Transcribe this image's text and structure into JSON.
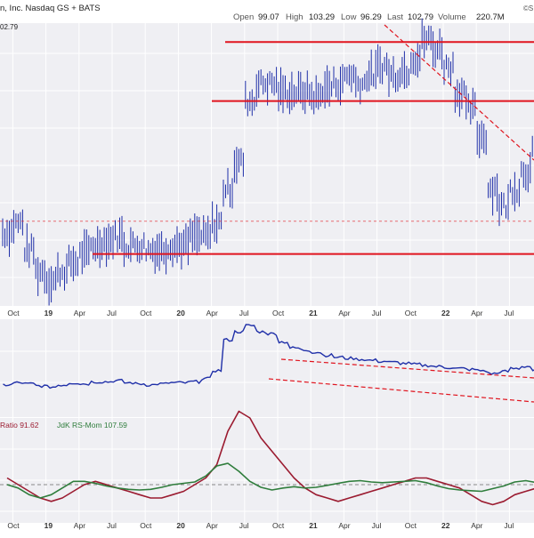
{
  "header": {
    "title": "n, Inc. Nasdaq GS + BATS",
    "open_label": "Open",
    "open": "99.07",
    "high_label": "High",
    "high": "103.29",
    "low_label": "Low",
    "low": "96.29",
    "last_label": "Last",
    "last": "102.79",
    "volume_label": "Volume",
    "volume": "220.7M",
    "corner_text": "©S",
    "price_tag": "02.79"
  },
  "panels": {
    "rrg_label_ratio": "Ratio 91.62",
    "rrg_label_mom": "JdK RS-Mom 107.59"
  },
  "colors": {
    "price": "#1f2fa8",
    "ratio": "#1f2fa8",
    "rs_ratio": "#9b1b30",
    "rs_mom": "#2f7d3c",
    "support_resistance": "#e0141e",
    "trend_dashed": "#e0141e",
    "panel_bg": "#efeff3",
    "grid": "#ffffff"
  },
  "chart_data": [
    {
      "type": "line",
      "panel": "price",
      "title": "n, Inc. Nasdaq GS + BATS",
      "x_ticks": [
        "Oct",
        "19",
        "Apr",
        "Jul",
        "Oct",
        "20",
        "Apr",
        "Jul",
        "Oct",
        "21",
        "Apr",
        "Jul",
        "Oct",
        "22",
        "Apr",
        "Jul",
        "Oct"
      ],
      "horizontal_lines": [
        93.5,
        80,
        45
      ],
      "dashed_level": 52.5,
      "series": [
        {
          "name": "",
          "x": [
            "2018-09",
            "2018-10",
            "2018-11",
            "2018-12",
            "2019-01",
            "2019-02",
            "2019-03",
            "2019-04",
            "2019-05",
            "2019-06",
            "2019-07",
            "2019-08",
            "2019-09",
            "2019-10",
            "2019-11",
            "2019-12",
            "2020-01",
            "2020-02",
            "2020-03",
            "2020-04",
            "2020-05",
            "2020-06",
            "2020-07",
            "2020-08",
            "2020-09",
            "2020-10",
            "2020-11",
            "2020-12",
            "2021-01",
            "2021-02",
            "2021-03",
            "2021-04",
            "2021-05",
            "2021-06",
            "2021-07",
            "2021-08",
            "2021-09",
            "2021-10",
            "2021-11",
            "2021-12",
            "2022-01",
            "2022-02",
            "2022-03",
            "2022-04",
            "2022-05",
            "2022-06",
            "2022-07",
            "2022-08",
            "2022-09",
            "2022-10",
            "2022-11"
          ],
          "values": [
            50,
            52,
            46,
            41,
            39,
            41,
            43,
            45,
            47,
            48,
            49,
            47,
            47,
            46,
            46,
            47,
            47,
            49,
            49,
            52,
            60,
            66,
            80,
            84,
            84,
            82,
            82,
            82,
            81,
            83,
            84,
            86,
            84,
            86,
            88,
            86,
            87,
            90,
            94,
            92,
            88,
            82,
            78,
            72,
            60,
            56,
            60,
            64,
            68,
            60,
            50
          ]
        }
      ]
    },
    {
      "type": "line",
      "panel": "relative-strength",
      "series": [
        {
          "name": "",
          "x": [
            "2018-09",
            "2018-10",
            "2018-11",
            "2018-12",
            "2019-01",
            "2019-02",
            "2019-03",
            "2019-04",
            "2019-05",
            "2019-06",
            "2019-07",
            "2019-08",
            "2019-09",
            "2019-10",
            "2019-11",
            "2019-12",
            "2020-01",
            "2020-02",
            "2020-03",
            "2020-04",
            "2020-05",
            "2020-06",
            "2020-07",
            "2020-08",
            "2020-09",
            "2020-10",
            "2020-11",
            "2020-12",
            "2021-01",
            "2021-02",
            "2021-03",
            "2021-04",
            "2021-05",
            "2021-06",
            "2021-07",
            "2021-08",
            "2021-09",
            "2021-10",
            "2021-11",
            "2021-12",
            "2022-01",
            "2022-02",
            "2022-03",
            "2022-04",
            "2022-05",
            "2022-06",
            "2022-07",
            "2022-08",
            "2022-09",
            "2022-10",
            "2022-11"
          ],
          "values": [
            28,
            30,
            29,
            27,
            26,
            28,
            30,
            29,
            31,
            31,
            32,
            30,
            29,
            28,
            29,
            30,
            30,
            31,
            34,
            42,
            72,
            80,
            86,
            80,
            78,
            70,
            64,
            62,
            60,
            57,
            55,
            54,
            53,
            52,
            51,
            50,
            49,
            48,
            47,
            46,
            45,
            44,
            43,
            42,
            39,
            41,
            44,
            46,
            42,
            34,
            30
          ]
        }
      ]
    },
    {
      "type": "line",
      "panel": "rrg",
      "series": [
        {
          "name": "Ratio",
          "x": [
            "2018-09",
            "2018-10",
            "2018-11",
            "2018-12",
            "2019-01",
            "2019-02",
            "2019-03",
            "2019-04",
            "2019-05",
            "2019-06",
            "2019-07",
            "2019-08",
            "2019-09",
            "2019-10",
            "2019-11",
            "2019-12",
            "2020-01",
            "2020-02",
            "2020-03",
            "2020-04",
            "2020-05",
            "2020-06",
            "2020-07",
            "2020-08",
            "2020-09",
            "2020-10",
            "2020-11",
            "2020-12",
            "2021-01",
            "2021-02",
            "2021-03",
            "2021-04",
            "2021-05",
            "2021-06",
            "2021-07",
            "2021-08",
            "2021-09",
            "2021-10",
            "2021-11",
            "2021-12",
            "2022-01",
            "2022-02",
            "2022-03",
            "2022-04",
            "2022-05",
            "2022-06",
            "2022-07",
            "2022-08",
            "2022-09",
            "2022-10",
            "2022-11"
          ],
          "values": [
            101,
            100,
            99,
            98,
            97.5,
            98,
            99,
            100,
            100.5,
            100,
            99.5,
            99,
            98.5,
            98,
            98,
            98.5,
            99,
            100,
            101,
            103,
            108,
            111,
            110,
            107,
            105,
            103,
            101,
            99.5,
            98.5,
            98,
            97.5,
            98,
            98.5,
            99,
            99.5,
            100,
            100.5,
            101,
            101,
            100.5,
            100,
            99.5,
            98.5,
            97.5,
            97,
            97.5,
            98.5,
            99,
            99.5,
            99,
            98
          ]
        },
        {
          "name": "JdK RS-Mom",
          "x": [
            "2018-09",
            "2018-10",
            "2018-11",
            "2018-12",
            "2019-01",
            "2019-02",
            "2019-03",
            "2019-04",
            "2019-05",
            "2019-06",
            "2019-07",
            "2019-08",
            "2019-09",
            "2019-10",
            "2019-11",
            "2019-12",
            "2020-01",
            "2020-02",
            "2020-03",
            "2020-04",
            "2020-05",
            "2020-06",
            "2020-07",
            "2020-08",
            "2020-09",
            "2020-10",
            "2020-11",
            "2020-12",
            "2021-01",
            "2021-02",
            "2021-03",
            "2021-04",
            "2021-05",
            "2021-06",
            "2021-07",
            "2021-08",
            "2021-09",
            "2021-10",
            "2021-11",
            "2021-12",
            "2022-01",
            "2022-02",
            "2022-03",
            "2022-04",
            "2022-05",
            "2022-06",
            "2022-07",
            "2022-08",
            "2022-09",
            "2022-10",
            "2022-11"
          ],
          "values": [
            100,
            99.5,
            98.5,
            98,
            98.5,
            99.5,
            100.5,
            100.5,
            100.2,
            99.8,
            99.5,
            99.3,
            99.2,
            99.3,
            99.6,
            100,
            100.2,
            100.4,
            101.3,
            102.8,
            103.2,
            102,
            100.5,
            99.6,
            99.2,
            99.5,
            99.7,
            99.5,
            99.6,
            99.9,
            100.2,
            100.5,
            100.6,
            100.4,
            100.3,
            100.4,
            100.5,
            100.6,
            100.3,
            99.8,
            99.4,
            99.2,
            99.1,
            99,
            99.4,
            99.8,
            100.4,
            100.6,
            100.3,
            99.9,
            99.2
          ]
        }
      ]
    }
  ]
}
